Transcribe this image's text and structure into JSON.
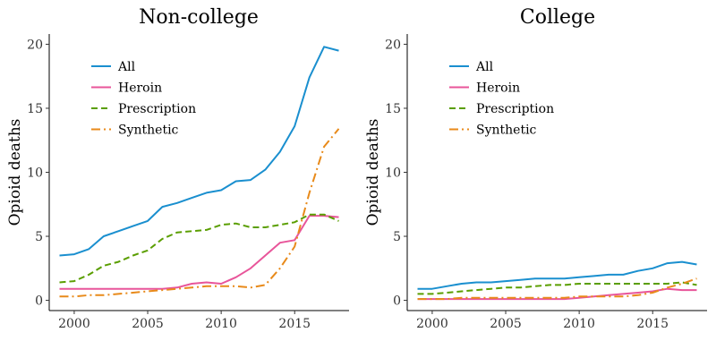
{
  "chart_data": [
    {
      "type": "line",
      "title": "Non-college",
      "xlabel": "",
      "ylabel": "Opioid deaths",
      "xlim": [
        1998.3,
        2018.7
      ],
      "ylim": [
        -0.8,
        20.8
      ],
      "xticks": [
        "2000",
        "2005",
        "2010",
        "2015"
      ],
      "yticks": [
        "0",
        "5",
        "10",
        "15",
        "20"
      ],
      "legend_position": "top-left",
      "x": [
        1999,
        2000,
        2001,
        2002,
        2003,
        2004,
        2005,
        2006,
        2007,
        2008,
        2009,
        2010,
        2011,
        2012,
        2013,
        2014,
        2015,
        2016,
        2017,
        2018
      ],
      "series": [
        {
          "name": "All",
          "color": "#1a8fcf",
          "dash": "solid",
          "values": [
            3.5,
            3.6,
            4.0,
            5.0,
            5.4,
            5.8,
            6.2,
            7.3,
            7.6,
            8.0,
            8.4,
            8.6,
            9.3,
            9.4,
            10.2,
            11.6,
            13.6,
            17.4,
            19.8,
            19.5
          ]
        },
        {
          "name": "Heroin",
          "color": "#e8559a",
          "dash": "solid",
          "values": [
            0.9,
            0.9,
            0.9,
            0.9,
            0.9,
            0.9,
            0.9,
            0.9,
            1.0,
            1.3,
            1.4,
            1.3,
            1.8,
            2.5,
            3.5,
            4.5,
            4.7,
            6.6,
            6.6,
            6.5
          ]
        },
        {
          "name": "Prescription",
          "color": "#5a9e00",
          "dash": "dashed",
          "values": [
            1.4,
            1.5,
            2.0,
            2.7,
            3.0,
            3.5,
            3.9,
            4.8,
            5.3,
            5.4,
            5.5,
            5.9,
            6.0,
            5.7,
            5.7,
            5.9,
            6.1,
            6.7,
            6.7,
            6.2
          ]
        },
        {
          "name": "Synthetic",
          "color": "#e88a1a",
          "dash": "dashdot",
          "values": [
            0.3,
            0.3,
            0.4,
            0.4,
            0.5,
            0.6,
            0.7,
            0.8,
            0.9,
            1.0,
            1.1,
            1.1,
            1.1,
            1.0,
            1.2,
            2.5,
            4.2,
            8.4,
            12.0,
            13.4
          ]
        }
      ]
    },
    {
      "type": "line",
      "title": "College",
      "xlabel": "",
      "ylabel": "Opioid deaths",
      "xlim": [
        1998.3,
        2018.7
      ],
      "ylim": [
        -0.8,
        20.8
      ],
      "xticks": [
        "2000",
        "2005",
        "2010",
        "2015"
      ],
      "yticks": [
        "0",
        "5",
        "10",
        "15",
        "20"
      ],
      "legend_position": "top-left",
      "x": [
        1999,
        2000,
        2001,
        2002,
        2003,
        2004,
        2005,
        2006,
        2007,
        2008,
        2009,
        2010,
        2011,
        2012,
        2013,
        2014,
        2015,
        2016,
        2017,
        2018
      ],
      "series": [
        {
          "name": "All",
          "color": "#1a8fcf",
          "dash": "solid",
          "values": [
            0.9,
            0.9,
            1.1,
            1.3,
            1.4,
            1.4,
            1.5,
            1.6,
            1.7,
            1.7,
            1.7,
            1.8,
            1.9,
            2.0,
            2.0,
            2.3,
            2.5,
            2.9,
            3.0,
            2.8
          ]
        },
        {
          "name": "Heroin",
          "color": "#e8559a",
          "dash": "solid",
          "values": [
            0.1,
            0.1,
            0.1,
            0.1,
            0.1,
            0.1,
            0.1,
            0.1,
            0.1,
            0.1,
            0.1,
            0.2,
            0.3,
            0.4,
            0.5,
            0.6,
            0.7,
            0.9,
            0.8,
            0.8
          ]
        },
        {
          "name": "Prescription",
          "color": "#5a9e00",
          "dash": "dashed",
          "values": [
            0.5,
            0.5,
            0.6,
            0.7,
            0.8,
            0.9,
            1.0,
            1.0,
            1.1,
            1.2,
            1.2,
            1.3,
            1.3,
            1.3,
            1.3,
            1.3,
            1.3,
            1.3,
            1.4,
            1.2
          ]
        },
        {
          "name": "Synthetic",
          "color": "#e88a1a",
          "dash": "dashdot",
          "values": [
            0.1,
            0.1,
            0.1,
            0.2,
            0.2,
            0.2,
            0.2,
            0.2,
            0.2,
            0.2,
            0.2,
            0.3,
            0.3,
            0.3,
            0.3,
            0.4,
            0.6,
            1.0,
            1.3,
            1.7
          ]
        }
      ]
    }
  ]
}
